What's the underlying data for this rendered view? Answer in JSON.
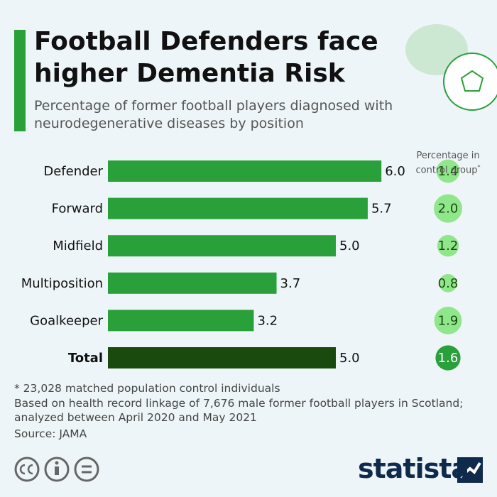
{
  "chart_data": {
    "type": "bar",
    "title": "Football Defenders face higher Dementia Risk",
    "subtitle": "Percentage of former football players diagnosed with neurodegenerative diseases by position",
    "categories": [
      "Defender",
      "Forward",
      "Midfield",
      "Multiposition",
      "Goalkeeper",
      "Total"
    ],
    "values": [
      6.0,
      5.7,
      5.0,
      3.7,
      3.2,
      5.0
    ],
    "value_labels": [
      "6.0",
      "5.7",
      "5.0",
      "3.7",
      "3.2",
      "5.0"
    ],
    "colors": [
      "#2aa03a",
      "#2aa03a",
      "#2aa03a",
      "#2aa03a",
      "#2aa03a",
      "#1b4a0e"
    ],
    "control_group": {
      "title": "Percentage in control group",
      "marker": "*",
      "values": [
        1.4,
        2.0,
        1.2,
        0.8,
        1.9,
        1.6
      ],
      "value_labels": [
        "1.4",
        "2.0",
        "1.2",
        "0.8",
        "1.9",
        "1.6"
      ],
      "colors": [
        "#8fe68b",
        "#8fe68b",
        "#8fe68b",
        "#8fe68b",
        "#8fe68b",
        "#2aa03a"
      ]
    },
    "notes": [
      "* 23,028 matched population control individuals",
      "Based on health record linkage of 7,676 male former football players in Scotland;",
      "analyzed between April 2020 and May 2021",
      "Source: JAMA"
    ],
    "brand": "statista"
  }
}
